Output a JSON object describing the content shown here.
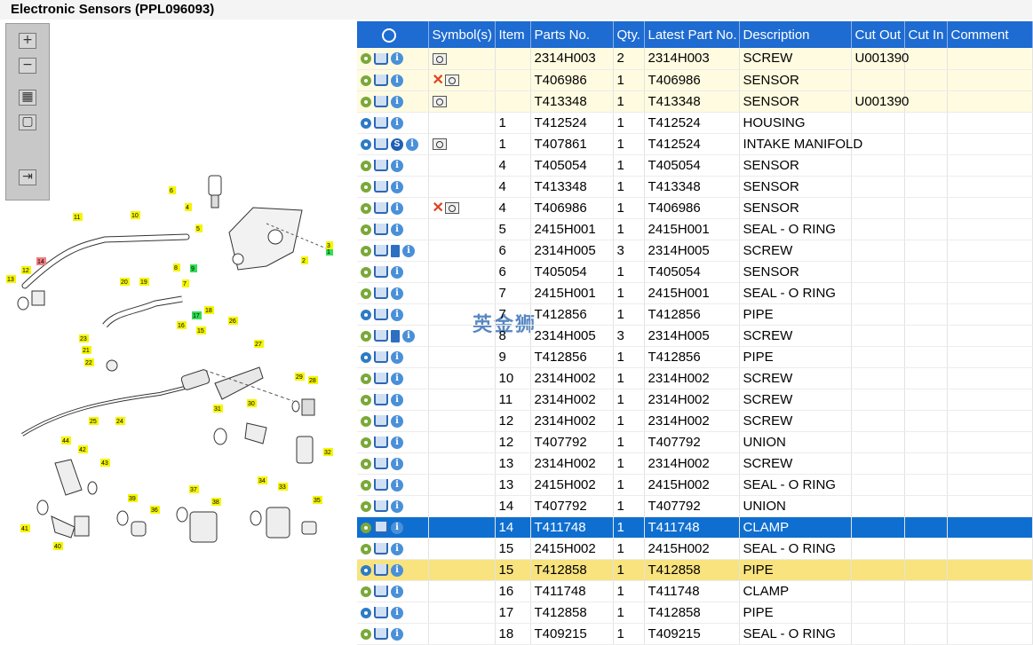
{
  "window": {
    "title": "Electronic Sensors (PPL096093)"
  },
  "watermark": "英金狮",
  "diagram": {
    "zoom_toolbar": [
      "zoom-in",
      "zoom-out",
      "fit-all",
      "fit-page",
      "export"
    ],
    "callouts": [
      "1",
      "2",
      "3",
      "4",
      "5",
      "6",
      "7",
      "8",
      "9",
      "10",
      "11",
      "12",
      "13",
      "14",
      "15",
      "16",
      "17",
      "18",
      "19",
      "20",
      "21",
      "22",
      "23",
      "24",
      "25",
      "26",
      "27",
      "28",
      "29",
      "30",
      "31",
      "32",
      "33",
      "34",
      "35",
      "36",
      "37",
      "38",
      "39",
      "40",
      "41",
      "42",
      "43",
      "44"
    ]
  },
  "grid": {
    "columns": [
      "",
      "Symbol(s)",
      "Item",
      "Parts No.",
      "Qty.",
      "Latest Part No.",
      "Description",
      "Cut Out",
      "Cut In",
      "Comment"
    ],
    "rows": [
      {
        "row_state": "superseded",
        "gear": "single",
        "extra": "",
        "symbols": "scope",
        "item": "",
        "part": "2314H003",
        "qty": "2",
        "latest": "2314H003",
        "desc": "SCREW",
        "cut_out": "U001390",
        "cut_in": "",
        "comment": ""
      },
      {
        "row_state": "superseded",
        "gear": "single",
        "extra": "",
        "symbols": "x-scope",
        "item": "",
        "part": "T406986",
        "qty": "1",
        "latest": "T406986",
        "desc": "SENSOR",
        "cut_out": "",
        "cut_in": "",
        "comment": ""
      },
      {
        "row_state": "superseded",
        "gear": "single",
        "extra": "",
        "symbols": "scope",
        "item": "",
        "part": "T413348",
        "qty": "1",
        "latest": "T413348",
        "desc": "SENSOR",
        "cut_out": "U001390",
        "cut_in": "",
        "comment": ""
      },
      {
        "row_state": "",
        "gear": "multi",
        "extra": "",
        "symbols": "",
        "item": "1",
        "part": "T412524",
        "qty": "1",
        "latest": "T412524",
        "desc": "HOUSING",
        "cut_out": "",
        "cut_in": "",
        "comment": ""
      },
      {
        "row_state": "",
        "gear": "multi",
        "extra": "s",
        "symbols": "scope",
        "item": "1",
        "part": "T407861",
        "qty": "1",
        "latest": "T412524",
        "desc": "INTAKE MANIFOLD",
        "cut_out": "",
        "cut_in": "",
        "comment": ""
      },
      {
        "row_state": "",
        "gear": "single",
        "extra": "",
        "symbols": "",
        "item": "4",
        "part": "T405054",
        "qty": "1",
        "latest": "T405054",
        "desc": "SENSOR",
        "cut_out": "",
        "cut_in": "",
        "comment": ""
      },
      {
        "row_state": "",
        "gear": "single",
        "extra": "",
        "symbols": "",
        "item": "4",
        "part": "T413348",
        "qty": "1",
        "latest": "T413348",
        "desc": "SENSOR",
        "cut_out": "",
        "cut_in": "",
        "comment": ""
      },
      {
        "row_state": "",
        "gear": "single",
        "extra": "",
        "symbols": "x-scope",
        "item": "4",
        "part": "T406986",
        "qty": "1",
        "latest": "T406986",
        "desc": "SENSOR",
        "cut_out": "",
        "cut_in": "",
        "comment": ""
      },
      {
        "row_state": "",
        "gear": "single",
        "extra": "",
        "symbols": "",
        "item": "5",
        "part": "2415H001",
        "qty": "1",
        "latest": "2415H001",
        "desc": "SEAL - O RING",
        "cut_out": "",
        "cut_in": "",
        "comment": ""
      },
      {
        "row_state": "",
        "gear": "single",
        "extra": "book",
        "symbols": "",
        "item": "6",
        "part": "2314H005",
        "qty": "3",
        "latest": "2314H005",
        "desc": "SCREW",
        "cut_out": "",
        "cut_in": "",
        "comment": ""
      },
      {
        "row_state": "",
        "gear": "single",
        "extra": "",
        "symbols": "",
        "item": "6",
        "part": "T405054",
        "qty": "1",
        "latest": "T405054",
        "desc": "SENSOR",
        "cut_out": "",
        "cut_in": "",
        "comment": ""
      },
      {
        "row_state": "",
        "gear": "single",
        "extra": "",
        "symbols": "",
        "item": "7",
        "part": "2415H001",
        "qty": "1",
        "latest": "2415H001",
        "desc": "SEAL - O RING",
        "cut_out": "",
        "cut_in": "",
        "comment": ""
      },
      {
        "row_state": "",
        "gear": "multi",
        "extra": "",
        "symbols": "",
        "item": "7",
        "part": "T412856",
        "qty": "1",
        "latest": "T412856",
        "desc": "PIPE",
        "cut_out": "",
        "cut_in": "",
        "comment": ""
      },
      {
        "row_state": "",
        "gear": "single",
        "extra": "book",
        "symbols": "",
        "item": "8",
        "part": "2314H005",
        "qty": "3",
        "latest": "2314H005",
        "desc": "SCREW",
        "cut_out": "",
        "cut_in": "",
        "comment": ""
      },
      {
        "row_state": "",
        "gear": "multi",
        "extra": "",
        "symbols": "",
        "item": "9",
        "part": "T412856",
        "qty": "1",
        "latest": "T412856",
        "desc": "PIPE",
        "cut_out": "",
        "cut_in": "",
        "comment": ""
      },
      {
        "row_state": "",
        "gear": "single",
        "extra": "",
        "symbols": "",
        "item": "10",
        "part": "2314H002",
        "qty": "1",
        "latest": "2314H002",
        "desc": "SCREW",
        "cut_out": "",
        "cut_in": "",
        "comment": ""
      },
      {
        "row_state": "",
        "gear": "single",
        "extra": "",
        "symbols": "",
        "item": "11",
        "part": "2314H002",
        "qty": "1",
        "latest": "2314H002",
        "desc": "SCREW",
        "cut_out": "",
        "cut_in": "",
        "comment": ""
      },
      {
        "row_state": "",
        "gear": "single",
        "extra": "",
        "symbols": "",
        "item": "12",
        "part": "2314H002",
        "qty": "1",
        "latest": "2314H002",
        "desc": "SCREW",
        "cut_out": "",
        "cut_in": "",
        "comment": ""
      },
      {
        "row_state": "",
        "gear": "single",
        "extra": "",
        "symbols": "",
        "item": "12",
        "part": "T407792",
        "qty": "1",
        "latest": "T407792",
        "desc": "UNION",
        "cut_out": "",
        "cut_in": "",
        "comment": ""
      },
      {
        "row_state": "",
        "gear": "single",
        "extra": "",
        "symbols": "",
        "item": "13",
        "part": "2314H002",
        "qty": "1",
        "latest": "2314H002",
        "desc": "SCREW",
        "cut_out": "",
        "cut_in": "",
        "comment": ""
      },
      {
        "row_state": "",
        "gear": "single",
        "extra": "",
        "symbols": "",
        "item": "13",
        "part": "2415H002",
        "qty": "1",
        "latest": "2415H002",
        "desc": "SEAL - O RING",
        "cut_out": "",
        "cut_in": "",
        "comment": ""
      },
      {
        "row_state": "",
        "gear": "single",
        "extra": "",
        "symbols": "",
        "item": "14",
        "part": "T407792",
        "qty": "1",
        "latest": "T407792",
        "desc": "UNION",
        "cut_out": "",
        "cut_in": "",
        "comment": ""
      },
      {
        "row_state": "selected",
        "gear": "single",
        "extra": "",
        "symbols": "",
        "item": "14",
        "part": "T411748",
        "qty": "1",
        "latest": "T411748",
        "desc": "CLAMP",
        "cut_out": "",
        "cut_in": "",
        "comment": ""
      },
      {
        "row_state": "",
        "gear": "single",
        "extra": "",
        "symbols": "",
        "item": "15",
        "part": "2415H002",
        "qty": "1",
        "latest": "2415H002",
        "desc": "SEAL - O RING",
        "cut_out": "",
        "cut_in": "",
        "comment": ""
      },
      {
        "row_state": "highlight",
        "gear": "multi",
        "extra": "",
        "symbols": "",
        "item": "15",
        "part": "T412858",
        "qty": "1",
        "latest": "T412858",
        "desc": "PIPE",
        "cut_out": "",
        "cut_in": "",
        "comment": ""
      },
      {
        "row_state": "",
        "gear": "single",
        "extra": "",
        "symbols": "",
        "item": "16",
        "part": "T411748",
        "qty": "1",
        "latest": "T411748",
        "desc": "CLAMP",
        "cut_out": "",
        "cut_in": "",
        "comment": ""
      },
      {
        "row_state": "",
        "gear": "multi",
        "extra": "",
        "symbols": "",
        "item": "17",
        "part": "T412858",
        "qty": "1",
        "latest": "T412858",
        "desc": "PIPE",
        "cut_out": "",
        "cut_in": "",
        "comment": ""
      },
      {
        "row_state": "",
        "gear": "single",
        "extra": "",
        "symbols": "",
        "item": "18",
        "part": "T409215",
        "qty": "1",
        "latest": "T409215",
        "desc": "SEAL - O RING",
        "cut_out": "",
        "cut_in": "",
        "comment": ""
      }
    ]
  }
}
